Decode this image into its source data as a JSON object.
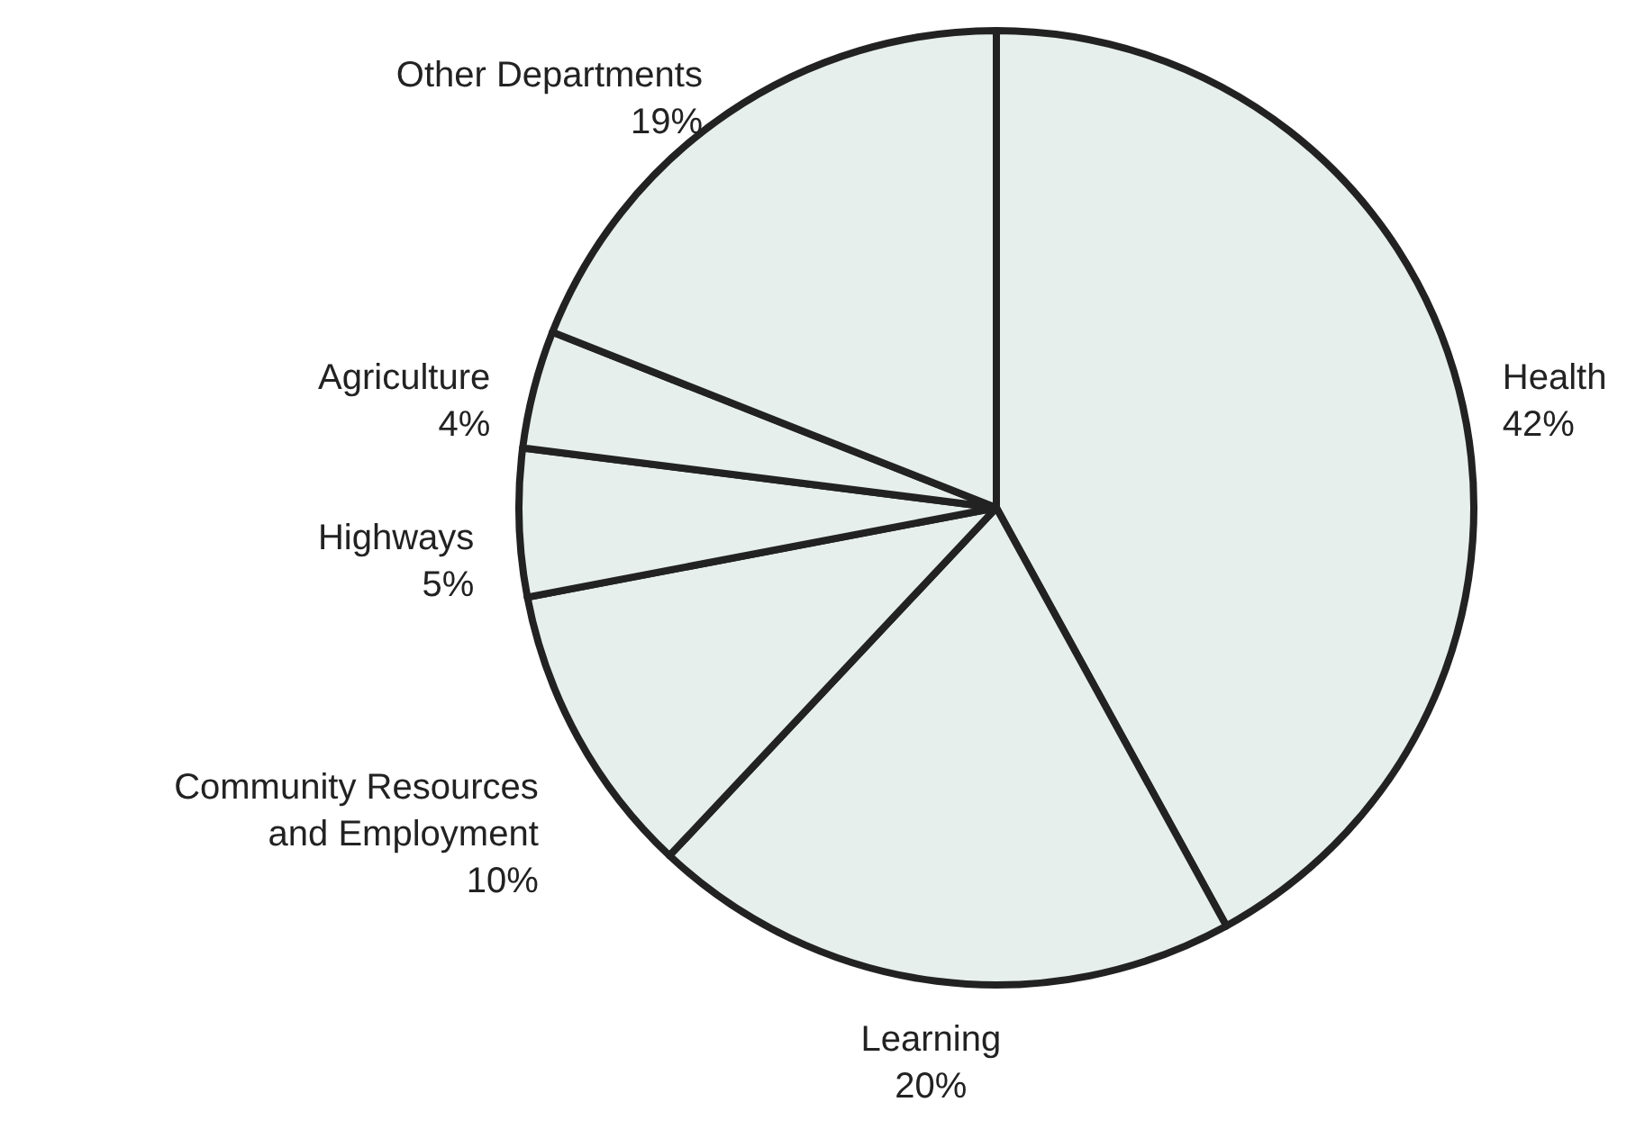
{
  "chart_data": {
    "type": "pie",
    "categories": [
      "Health",
      "Learning",
      "Community Resources and Employment",
      "Highways",
      "Agriculture",
      "Other Departments"
    ],
    "values": [
      42,
      20,
      10,
      5,
      4,
      19
    ],
    "value_labels": [
      "42%",
      "20%",
      "10%",
      "5%",
      "4%",
      "19%"
    ],
    "colors": [
      "#e6efeb",
      "#e6efeb",
      "#e6efeb",
      "#e6efeb",
      "#e6efeb",
      "#e6efeb"
    ]
  }
}
